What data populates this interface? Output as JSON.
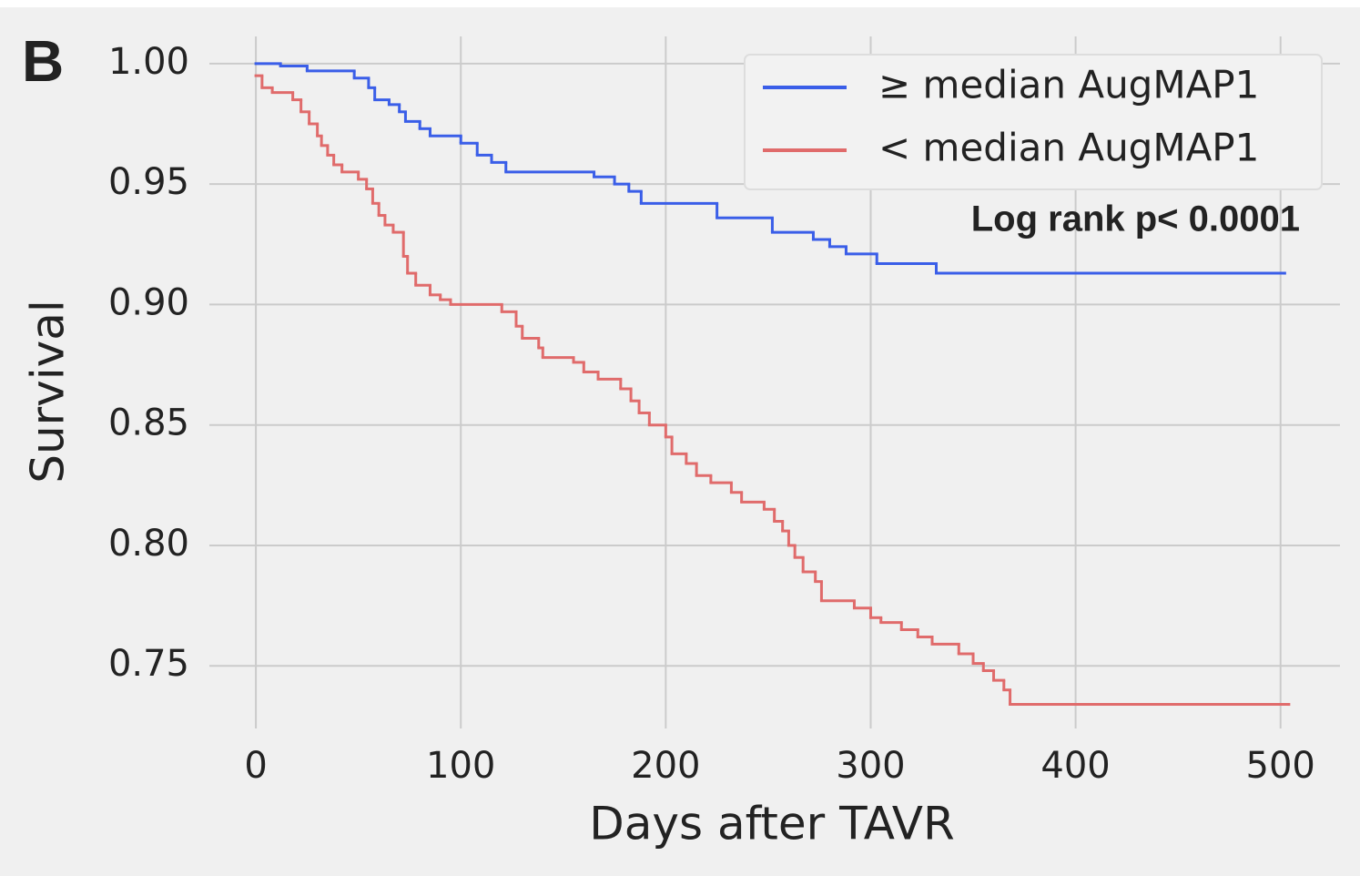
{
  "chart_data": {
    "type": "line",
    "steps": "post",
    "panel_label": "B",
    "x_label": "Days after TAVR",
    "y_label": "Survival",
    "annotation": "Log rank p< 0.0001",
    "xlim": [
      -22.7,
      529
    ],
    "ylim": [
      0.724,
      1.0113
    ],
    "xticks": [
      0,
      100,
      200,
      300,
      400,
      500
    ],
    "yticks": [
      {
        "value": 0.75,
        "label": "0.75"
      },
      {
        "value": 0.8,
        "label": "0.80"
      },
      {
        "value": 0.85,
        "label": "0.85"
      },
      {
        "value": 0.9,
        "label": "0.90"
      },
      {
        "value": 0.95,
        "label": "0.95"
      },
      {
        "value": 1.0,
        "label": "1.00"
      }
    ],
    "grid": true,
    "legend": "upper right",
    "series": [
      {
        "name": "≥ median AugMAP1",
        "color": "#3a5ee8",
        "x": [
          0,
          12,
          25,
          48,
          55,
          58,
          65,
          70,
          73,
          80,
          85,
          100,
          108,
          115,
          122,
          165,
          175,
          182,
          188,
          225,
          252,
          272,
          280,
          288,
          303,
          332,
          502
        ],
        "values": [
          1.0,
          0.999,
          0.997,
          0.994,
          0.99,
          0.985,
          0.983,
          0.98,
          0.976,
          0.973,
          0.97,
          0.967,
          0.962,
          0.959,
          0.955,
          0.953,
          0.95,
          0.947,
          0.942,
          0.936,
          0.93,
          0.927,
          0.924,
          0.921,
          0.917,
          0.913,
          0.913
        ]
      },
      {
        "name": "< median AugMAP1",
        "color": "#e06b6b",
        "x": [
          0,
          3,
          8,
          18,
          22,
          26,
          30,
          32,
          35,
          38,
          42,
          50,
          54,
          57,
          60,
          63,
          67,
          72,
          74,
          78,
          85,
          90,
          95,
          120,
          127,
          130,
          138,
          140,
          155,
          160,
          167,
          178,
          183,
          187,
          192,
          200,
          203,
          210,
          215,
          222,
          232,
          237,
          248,
          253,
          257,
          260,
          263,
          267,
          273,
          276,
          292,
          300,
          305,
          315,
          323,
          330,
          343,
          350,
          355,
          360,
          365,
          368,
          504
        ],
        "values": [
          0.995,
          0.99,
          0.988,
          0.985,
          0.98,
          0.975,
          0.97,
          0.966,
          0.962,
          0.958,
          0.955,
          0.952,
          0.948,
          0.942,
          0.937,
          0.933,
          0.93,
          0.92,
          0.913,
          0.908,
          0.904,
          0.902,
          0.9,
          0.897,
          0.891,
          0.886,
          0.882,
          0.878,
          0.876,
          0.872,
          0.869,
          0.865,
          0.86,
          0.855,
          0.85,
          0.845,
          0.838,
          0.834,
          0.829,
          0.826,
          0.822,
          0.818,
          0.815,
          0.81,
          0.806,
          0.8,
          0.795,
          0.789,
          0.785,
          0.777,
          0.774,
          0.77,
          0.768,
          0.765,
          0.762,
          0.759,
          0.755,
          0.751,
          0.748,
          0.744,
          0.74,
          0.734,
          0.734
        ]
      }
    ]
  }
}
